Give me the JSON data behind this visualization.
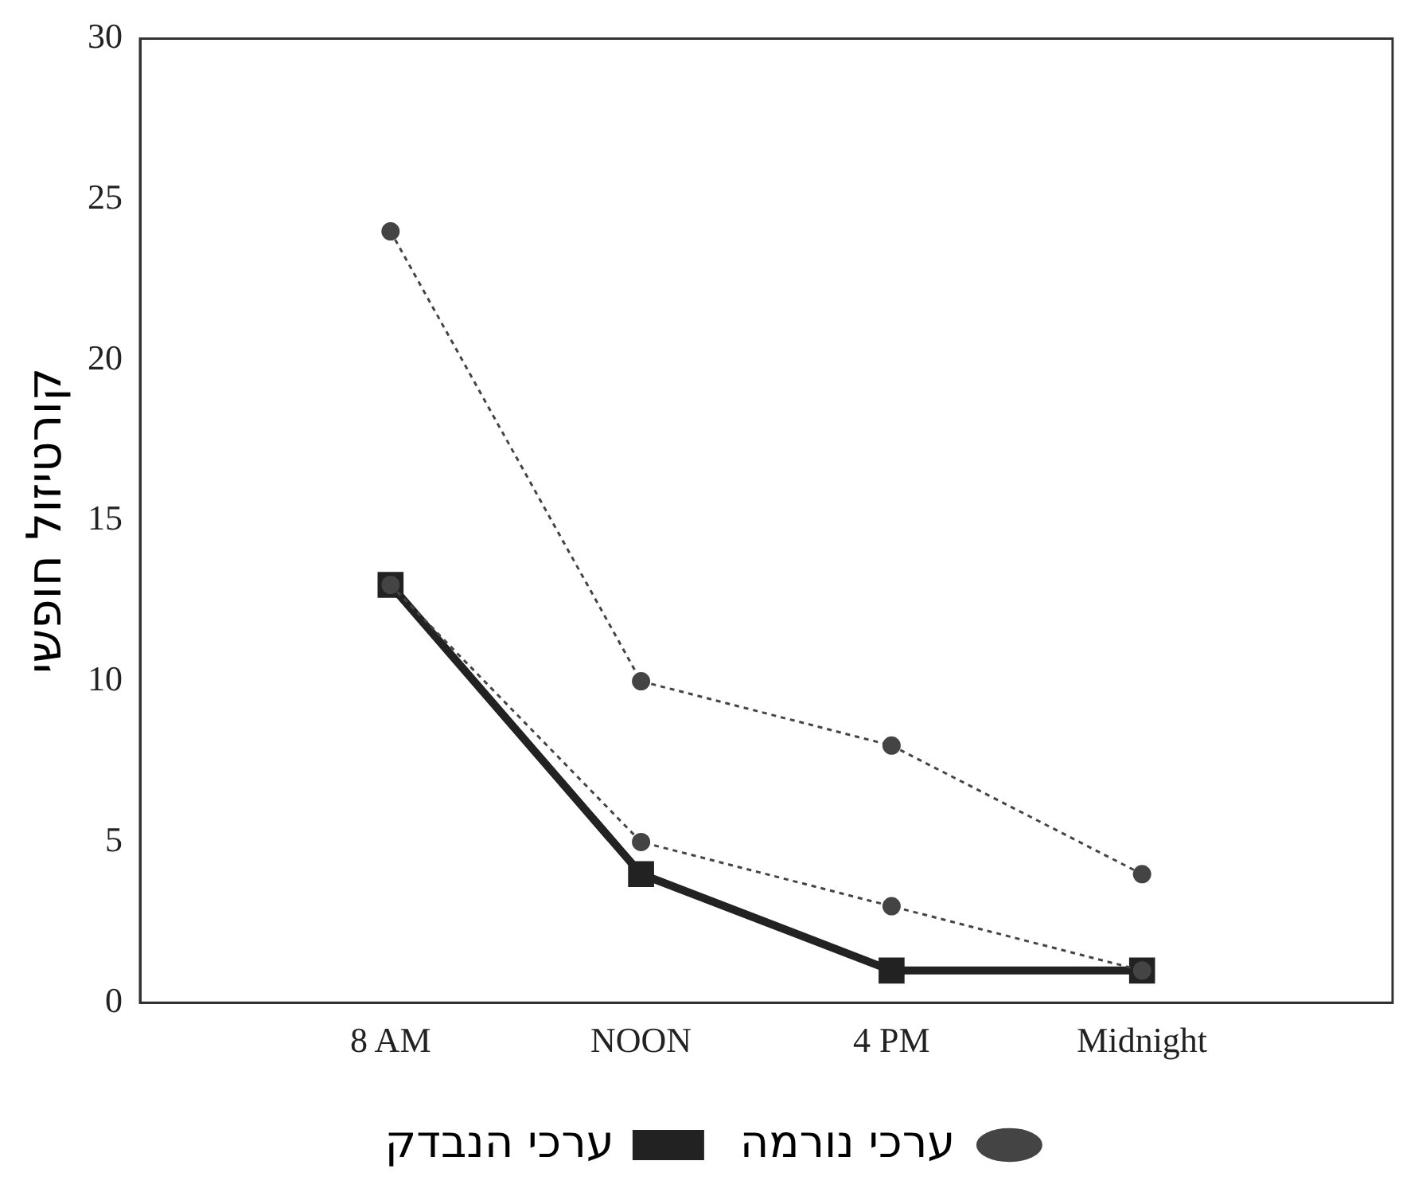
{
  "chart_data": {
    "type": "line",
    "ylabel": "קורטיזול חופשי",
    "categories": [
      null,
      "8 AM",
      "NOON",
      "4 PM",
      "Midnight",
      null
    ],
    "ylim": [
      0,
      30
    ],
    "yticks": [
      0,
      5,
      10,
      15,
      20,
      25,
      30
    ],
    "grid": false,
    "legend": "bottom",
    "series": [
      {
        "name": "ערכי נורמה",
        "color": "#444444",
        "values": [
          null,
          24,
          10,
          8,
          4,
          null
        ],
        "marker": "circle",
        "line_style": "dotted"
      },
      {
        "color": "#444444",
        "values": [
          null,
          13,
          5,
          3,
          1,
          null
        ],
        "marker": "circle",
        "line_style": "dotted"
      },
      {
        "name": "ערכי הנבדק",
        "color": "#222222",
        "values": [
          null,
          13,
          4,
          1,
          1,
          null
        ],
        "marker": "square",
        "line_style": "solid"
      }
    ]
  }
}
